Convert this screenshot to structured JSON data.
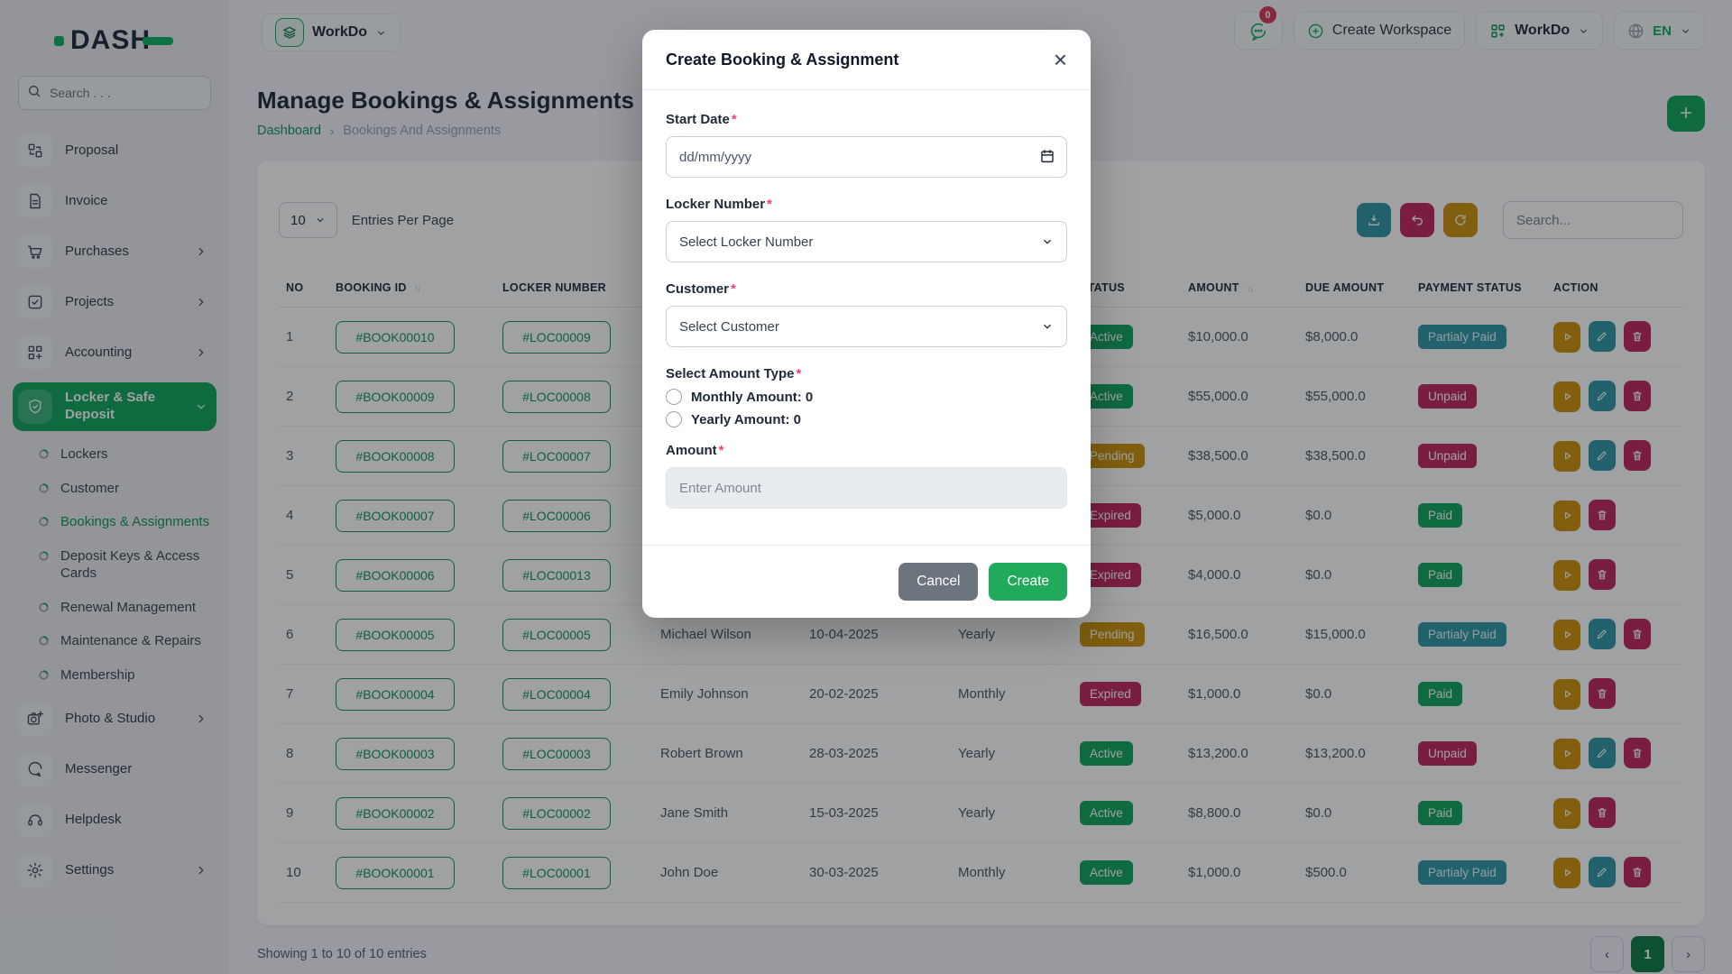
{
  "brand": {
    "name": "DASH"
  },
  "sidebar": {
    "search_placeholder": "Search . . .",
    "items": [
      {
        "label": "Proposal",
        "icon": "proposal",
        "chevron": "none",
        "active": false
      },
      {
        "label": "Invoice",
        "icon": "invoice",
        "chevron": "none",
        "active": false
      },
      {
        "label": "Purchases",
        "icon": "purchases",
        "chevron": "right",
        "active": false
      },
      {
        "label": "Projects",
        "icon": "projects",
        "chevron": "right",
        "active": false
      },
      {
        "label": "Accounting",
        "icon": "accounting",
        "chevron": "right",
        "active": false
      },
      {
        "label": "Locker & Safe Deposit",
        "icon": "locker",
        "chevron": "down",
        "active": true
      }
    ],
    "submenu": [
      {
        "label": "Lockers",
        "active": false
      },
      {
        "label": "Customer",
        "active": false
      },
      {
        "label": "Bookings & Assignments",
        "active": true
      },
      {
        "label": "Deposit Keys & Access Cards",
        "active": false
      },
      {
        "label": "Renewal Management",
        "active": false
      },
      {
        "label": "Maintenance & Repairs",
        "active": false
      },
      {
        "label": "Membership",
        "active": false
      }
    ],
    "items_bottom": [
      {
        "label": "Photo & Studio",
        "icon": "photo",
        "chevron": "right",
        "active": false
      },
      {
        "label": "Messenger",
        "icon": "messenger",
        "chevron": "none",
        "active": false
      },
      {
        "label": "Helpdesk",
        "icon": "helpdesk",
        "chevron": "none",
        "active": false
      },
      {
        "label": "Settings",
        "icon": "settings",
        "chevron": "right",
        "active": false
      }
    ]
  },
  "topbar": {
    "workspace_label": "WorkDo",
    "messages_badge": "0",
    "create_workspace_label": "Create Workspace",
    "app_switcher_label": "WorkDo",
    "language": "EN"
  },
  "page": {
    "title": "Manage Bookings & Assignments",
    "breadcrumb": [
      "Dashboard",
      "Bookings And Assignments"
    ]
  },
  "toolbar": {
    "entries_select": "10",
    "entries_label": "Entries Per Page",
    "search_placeholder": "Search...",
    "icon_buttons": [
      "download",
      "undo",
      "refresh"
    ]
  },
  "table": {
    "columns": [
      {
        "label": "NO",
        "sort": false
      },
      {
        "label": "BOOKING ID",
        "sort": true
      },
      {
        "label": "LOCKER NUMBER",
        "sort": false
      },
      {
        "label": "",
        "sort": false
      },
      {
        "label": "",
        "sort": false
      },
      {
        "label": "",
        "sort": false
      },
      {
        "label": "STATUS",
        "sort": false
      },
      {
        "label": "AMOUNT",
        "sort": true
      },
      {
        "label": "DUE AMOUNT",
        "sort": false
      },
      {
        "label": "PAYMENT STATUS",
        "sort": false
      },
      {
        "label": "ACTION",
        "sort": false
      }
    ],
    "rows": [
      {
        "no": "1",
        "booking_id": "#BOOK00010",
        "locker": "#LOC00009",
        "customer": "",
        "date": "",
        "type": "",
        "status": "Active",
        "amount": "$10,000.0",
        "due": "$8,000.0",
        "payment": "Partialy Paid",
        "actions": [
          "view",
          "edit",
          "delete"
        ]
      },
      {
        "no": "2",
        "booking_id": "#BOOK00009",
        "locker": "#LOC00008",
        "customer": "",
        "date": "",
        "type": "",
        "status": "Active",
        "amount": "$55,000.0",
        "due": "$55,000.0",
        "payment": "Unpaid",
        "actions": [
          "view",
          "edit",
          "delete"
        ]
      },
      {
        "no": "3",
        "booking_id": "#BOOK00008",
        "locker": "#LOC00007",
        "customer": "",
        "date": "",
        "type": "",
        "status": "Pending",
        "amount": "$38,500.0",
        "due": "$38,500.0",
        "payment": "Unpaid",
        "actions": [
          "view",
          "edit",
          "delete"
        ]
      },
      {
        "no": "4",
        "booking_id": "#BOOK00007",
        "locker": "#LOC00006",
        "customer": "",
        "date": "",
        "type": "",
        "status": "Expired",
        "amount": "$5,000.0",
        "due": "$0.0",
        "payment": "Paid",
        "actions": [
          "view",
          "delete"
        ]
      },
      {
        "no": "5",
        "booking_id": "#BOOK00006",
        "locker": "#LOC00013",
        "customer": "",
        "date": "",
        "type": "",
        "status": "Expired",
        "amount": "$4,000.0",
        "due": "$0.0",
        "payment": "Paid",
        "actions": [
          "view",
          "delete"
        ]
      },
      {
        "no": "6",
        "booking_id": "#BOOK00005",
        "locker": "#LOC00005",
        "customer": "Michael Wilson",
        "date": "10-04-2025",
        "type": "Yearly",
        "status": "Pending",
        "amount": "$16,500.0",
        "due": "$15,000.0",
        "payment": "Partialy Paid",
        "actions": [
          "view",
          "edit",
          "delete"
        ]
      },
      {
        "no": "7",
        "booking_id": "#BOOK00004",
        "locker": "#LOC00004",
        "customer": "Emily Johnson",
        "date": "20-02-2025",
        "type": "Monthly",
        "status": "Expired",
        "amount": "$1,000.0",
        "due": "$0.0",
        "payment": "Paid",
        "actions": [
          "view",
          "delete"
        ]
      },
      {
        "no": "8",
        "booking_id": "#BOOK00003",
        "locker": "#LOC00003",
        "customer": "Robert Brown",
        "date": "28-03-2025",
        "type": "Yearly",
        "status": "Active",
        "amount": "$13,200.0",
        "due": "$13,200.0",
        "payment": "Unpaid",
        "actions": [
          "view",
          "edit",
          "delete"
        ]
      },
      {
        "no": "9",
        "booking_id": "#BOOK00002",
        "locker": "#LOC00002",
        "customer": "Jane Smith",
        "date": "15-03-2025",
        "type": "Yearly",
        "status": "Active",
        "amount": "$8,800.0",
        "due": "$0.0",
        "payment": "Paid",
        "actions": [
          "view",
          "delete"
        ]
      },
      {
        "no": "10",
        "booking_id": "#BOOK00001",
        "locker": "#LOC00001",
        "customer": "John Doe",
        "date": "30-03-2025",
        "type": "Monthly",
        "status": "Active",
        "amount": "$1,000.0",
        "due": "$500.0",
        "payment": "Partialy Paid",
        "actions": [
          "view",
          "edit",
          "delete"
        ]
      }
    ]
  },
  "footer": {
    "showing_text": "Showing 1 to 10 of 10 entries",
    "pagination": {
      "prev": "‹",
      "current": "1",
      "next": "›"
    }
  },
  "modal": {
    "title": "Create Booking & Assignment",
    "fields": {
      "start_date": {
        "label": "Start Date",
        "placeholder": "dd/mm/yyyy"
      },
      "locker_number": {
        "label": "Locker Number",
        "value": "Select Locker Number"
      },
      "customer": {
        "label": "Customer",
        "value": "Select Customer"
      },
      "amount_type": {
        "label": "Select Amount Type",
        "options": [
          "Monthly Amount: 0",
          "Yearly Amount: 0"
        ]
      },
      "amount": {
        "label": "Amount",
        "placeholder": "Enter Amount"
      }
    },
    "buttons": {
      "cancel": "Cancel",
      "create": "Create"
    }
  },
  "colors": {
    "primary": "#0FA35A",
    "amber": "#CE9207",
    "crimson": "#C2255C",
    "teal": "#2F96A5"
  }
}
